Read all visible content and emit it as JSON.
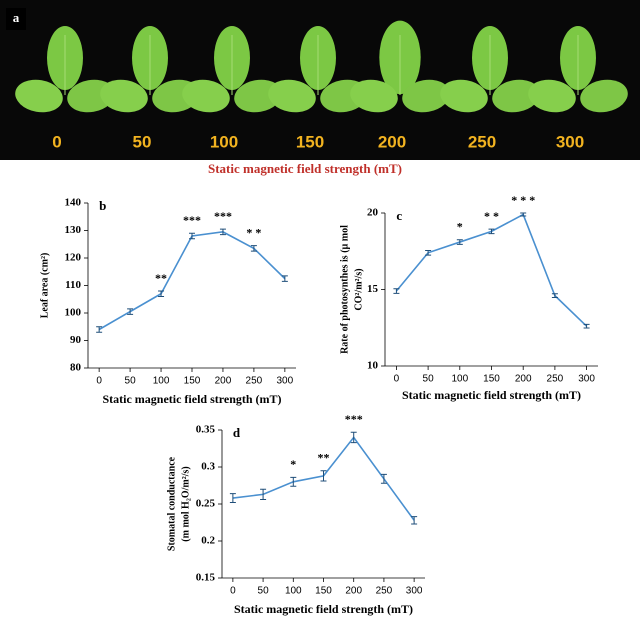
{
  "panel_a": {
    "label": "a",
    "labels": [
      "0",
      "50",
      "100",
      "150",
      "200",
      "250",
      "300"
    ],
    "caption": "Static magnetic field strength (mT)"
  },
  "chart_data": [
    {
      "type": "line",
      "panel_label": "b",
      "xlabel": "Static magnetic field strength (mT)",
      "ylabel": [
        "Leaf area (cm²)"
      ],
      "x": [
        0,
        50,
        100,
        150,
        200,
        250,
        300
      ],
      "values": [
        94,
        100.5,
        107,
        128,
        129.5,
        123.5,
        112.5
      ],
      "errors": [
        1,
        1,
        1,
        1,
        1,
        1,
        1
      ],
      "color": "#4a90d0",
      "xlim": [
        -18,
        318
      ],
      "xticks": [
        0,
        50,
        100,
        150,
        200,
        250,
        300
      ],
      "ylim": [
        80,
        140
      ],
      "yticks": [
        80,
        90,
        100,
        110,
        120,
        130,
        140
      ],
      "annotations": [
        {
          "x": 100,
          "text": "**"
        },
        {
          "x": 150,
          "text": "***"
        },
        {
          "x": 200,
          "text": "***"
        },
        {
          "x": 250,
          "text": "* *"
        }
      ]
    },
    {
      "type": "line",
      "panel_label": "c",
      "xlabel": "Static magnetic field strength (mT)",
      "ylabel": [
        "Rate of photosynthes is (µ mol",
        "CO²/m²/s)"
      ],
      "x": [
        0,
        50,
        100,
        150,
        200,
        250,
        300
      ],
      "values": [
        14.9,
        17.4,
        18.1,
        18.8,
        19.9,
        14.6,
        12.6
      ],
      "errors": [
        0.15,
        0.15,
        0.15,
        0.15,
        0.1,
        0.12,
        0.12
      ],
      "color": "#4a90d0",
      "xlim": [
        -18,
        318
      ],
      "xticks": [
        0,
        50,
        100,
        150,
        200,
        250,
        300
      ],
      "ylim": [
        10,
        20
      ],
      "yticks": [
        10,
        15,
        20
      ],
      "annotations": [
        {
          "x": 100,
          "text": "*"
        },
        {
          "x": 150,
          "text": "* *"
        },
        {
          "x": 200,
          "text": "* * *"
        }
      ]
    },
    {
      "type": "line",
      "panel_label": "d",
      "xlabel": "Static magnetic field strength  (mT)",
      "ylabel": [
        "Stomatal  conductance",
        "(m mol H₂O/m²/s)"
      ],
      "x": [
        0,
        50,
        100,
        150,
        200,
        250,
        300
      ],
      "values": [
        0.258,
        0.263,
        0.28,
        0.288,
        0.34,
        0.284,
        0.228
      ],
      "errors": [
        0.006,
        0.007,
        0.006,
        0.007,
        0.007,
        0.006,
        0.005
      ],
      "color": "#4a90d0",
      "xlim": [
        -18,
        318
      ],
      "xticks": [
        0,
        50,
        100,
        150,
        200,
        250,
        300
      ],
      "ylim": [
        0.15,
        0.35
      ],
      "yticks": [
        0.15,
        0.2,
        0.25,
        0.3,
        0.35
      ],
      "annotations": [
        {
          "x": 100,
          "text": "*"
        },
        {
          "x": 150,
          "text": "**"
        },
        {
          "x": 200,
          "text": "***"
        }
      ]
    }
  ]
}
